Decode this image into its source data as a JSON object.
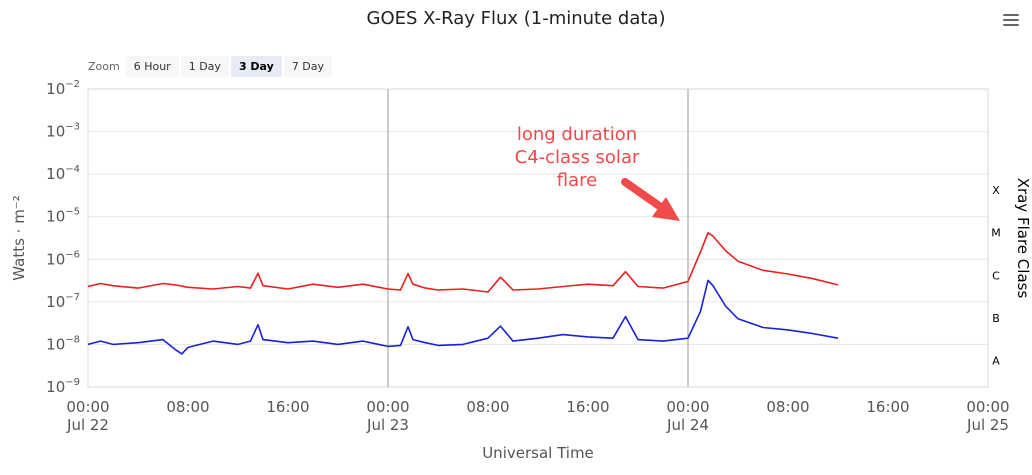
{
  "title": "GOES X-Ray Flux (1-minute data)",
  "zoom": {
    "label": "Zoom",
    "buttons": [
      "6 Hour",
      "1 Day",
      "3 Day",
      "7 Day"
    ],
    "active": "3 Day"
  },
  "colors": {
    "long_channel": "#e8201e",
    "short_channel": "#1a21d6",
    "annotation": "#f04a4a",
    "grid": "#e6e6e6"
  },
  "chart_data": {
    "type": "line",
    "title": "GOES X-Ray Flux (1-minute data)",
    "xlabel": "Universal Time",
    "ylabel": "Watts · m⁻²",
    "y2label": "Xray Flare Class",
    "yscale": "log",
    "ylim": [
      1e-09,
      0.01
    ],
    "y_ticks": [
      {
        "base": "10",
        "exp": "−9"
      },
      {
        "base": "10",
        "exp": "−8"
      },
      {
        "base": "10",
        "exp": "−7"
      },
      {
        "base": "10",
        "exp": "−6"
      },
      {
        "base": "10",
        "exp": "−5"
      },
      {
        "base": "10",
        "exp": "−4"
      },
      {
        "base": "10",
        "exp": "−3"
      },
      {
        "base": "10",
        "exp": "−2"
      }
    ],
    "xlim": [
      "2014-07-22 00:00",
      "2014-07-25 00:00"
    ],
    "x_ticks": [
      {
        "time": "00:00",
        "date": "Jul 22"
      },
      {
        "time": "08:00",
        "date": ""
      },
      {
        "time": "16:00",
        "date": ""
      },
      {
        "time": "00:00",
        "date": "Jul 23"
      },
      {
        "time": "08:00",
        "date": ""
      },
      {
        "time": "16:00",
        "date": ""
      },
      {
        "time": "00:00",
        "date": "Jul 24"
      },
      {
        "time": "08:00",
        "date": ""
      },
      {
        "time": "16:00",
        "date": ""
      },
      {
        "time": "00:00",
        "date": "Jul 25"
      }
    ],
    "flare_classes": [
      {
        "label": "X",
        "level": 0.0001
      },
      {
        "label": "M",
        "level": 1e-05
      },
      {
        "label": "C",
        "level": 1e-06
      },
      {
        "label": "B",
        "level": 1e-07
      },
      {
        "label": "A",
        "level": 1e-08
      }
    ],
    "day_lines": [
      "2014-07-23 00:00",
      "2014-07-24 00:00"
    ],
    "grid": true,
    "series": [
      {
        "color": "#e8201e",
        "x_hours": [
          0,
          1,
          2,
          4,
          6,
          7,
          8,
          10,
          12,
          13,
          13.6,
          14,
          16,
          18,
          20,
          22,
          24,
          25,
          25.6,
          26,
          27,
          28,
          30,
          32,
          33,
          34,
          36,
          38,
          40,
          42,
          43,
          44,
          46,
          48,
          49,
          49.6,
          50,
          51,
          52,
          54,
          56,
          58,
          60
        ],
        "values": [
          2.3e-07,
          2.7e-07,
          2.4e-07,
          2.1e-07,
          2.7e-07,
          2.5e-07,
          2.2e-07,
          2e-07,
          2.3e-07,
          2.1e-07,
          4.7e-07,
          2.4e-07,
          2e-07,
          2.6e-07,
          2.2e-07,
          2.6e-07,
          2e-07,
          1.9e-07,
          4.6e-07,
          2.6e-07,
          2.1e-07,
          1.9e-07,
          2e-07,
          1.7e-07,
          3.8e-07,
          1.9e-07,
          2e-07,
          2.3e-07,
          2.6e-07,
          2.4e-07,
          5.1e-07,
          2.3e-07,
          2.1e-07,
          3e-07,
          1.5e-06,
          4.2e-06,
          3.5e-06,
          1.6e-06,
          9e-07,
          5.5e-07,
          4.5e-07,
          3.5e-07,
          2.5e-07
        ]
      },
      {
        "color": "#1a21d6",
        "x_hours": [
          0,
          1,
          2,
          4,
          6,
          7,
          7.5,
          8,
          10,
          12,
          13,
          13.6,
          14,
          16,
          18,
          20,
          22,
          24,
          25,
          25.6,
          26,
          27,
          28,
          30,
          32,
          33,
          34,
          36,
          38,
          40,
          42,
          43,
          44,
          46,
          48,
          49,
          49.6,
          50,
          51,
          52,
          54,
          56,
          58,
          60
        ],
        "values": [
          1e-08,
          1.2e-08,
          1e-08,
          1.1e-08,
          1.3e-08,
          7.5e-09,
          6e-09,
          8.5e-09,
          1.2e-08,
          1e-08,
          1.2e-08,
          2.9e-08,
          1.3e-08,
          1.1e-08,
          1.2e-08,
          1e-08,
          1.2e-08,
          9e-09,
          9.5e-09,
          2.6e-08,
          1.3e-08,
          1.1e-08,
          9.5e-09,
          1e-08,
          1.4e-08,
          2.7e-08,
          1.2e-08,
          1.4e-08,
          1.7e-08,
          1.5e-08,
          1.4e-08,
          4.5e-08,
          1.3e-08,
          1.2e-08,
          1.4e-08,
          6e-08,
          3.2e-07,
          2.4e-07,
          8e-08,
          4e-08,
          2.5e-08,
          2.2e-08,
          1.8e-08,
          1.4e-08
        ]
      }
    ],
    "annotations": [
      {
        "lines": [
          "long duration",
          "C4-class solar",
          "flare"
        ]
      }
    ]
  }
}
